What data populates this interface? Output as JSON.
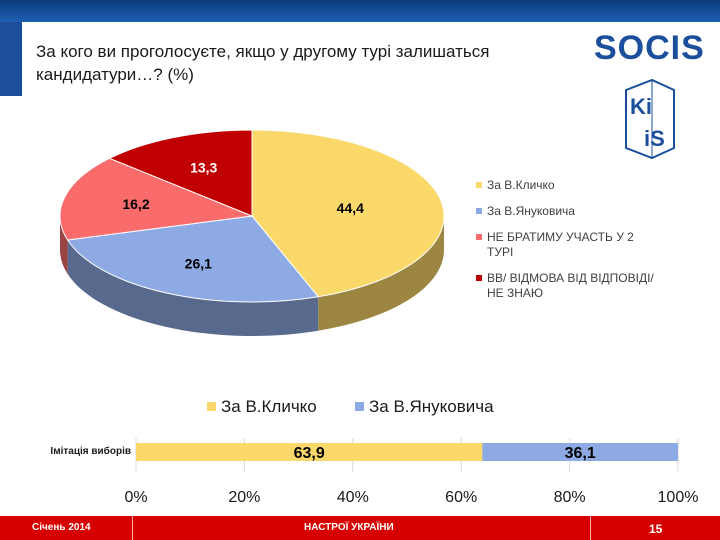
{
  "header": {
    "title_line1": "За кого ви проголосуєте, якщо у другому турі залишаться",
    "title_line2": "кандидатури…? (%)"
  },
  "logos": {
    "socis": "SOCIS",
    "kiis_top": "Ki",
    "kiis_bottom": "iS"
  },
  "chart_data": [
    {
      "type": "pie",
      "categories": [
        "За В.Кличко",
        "За В.Януковича",
        "НЕ БРАТИМУ УЧАСТЬ У 2 ТУРІ",
        "ВВ/ ВІДМОВА ВІД ВІДПОВІДІ/ НЕ ЗНАЮ"
      ],
      "legend_lines": [
        [
          "За В.Кличко"
        ],
        [
          "За В.Януковича"
        ],
        [
          "НЕ БРАТИМУ УЧАСТЬ У 2",
          "ТУРІ"
        ],
        [
          "ВВ/ ВІДМОВА ВІД ВІДПОВІДІ/",
          "НЕ ЗНАЮ"
        ]
      ],
      "values": [
        44.4,
        26.1,
        16.2,
        13.3
      ],
      "data_labels": [
        "44,4",
        "26,1",
        "16,2",
        "13,3"
      ],
      "colors": [
        "#fbd86a",
        "#8eaae5",
        "#fa6b6b",
        "#c00000"
      ],
      "legend_position": "right"
    },
    {
      "type": "bar",
      "orientation": "horizontal",
      "stacked": true,
      "categories": [
        "Імітація виборів"
      ],
      "series": [
        {
          "name": "За В.Кличко",
          "values": [
            63.9
          ],
          "label": "63,9",
          "color": "#fbd86a"
        },
        {
          "name": "За В.Януковича",
          "values": [
            36.1
          ],
          "label": "36,1",
          "color": "#8eaae5"
        }
      ],
      "xlim": [
        0,
        100
      ],
      "x_ticks": [
        "0%",
        "20%",
        "40%",
        "60%",
        "80%",
        "100%"
      ],
      "legend_position": "top"
    }
  ],
  "footer": {
    "date": "Січень 2014",
    "title": "НАСТРОЇ УКРАЇНИ",
    "page": "15"
  }
}
